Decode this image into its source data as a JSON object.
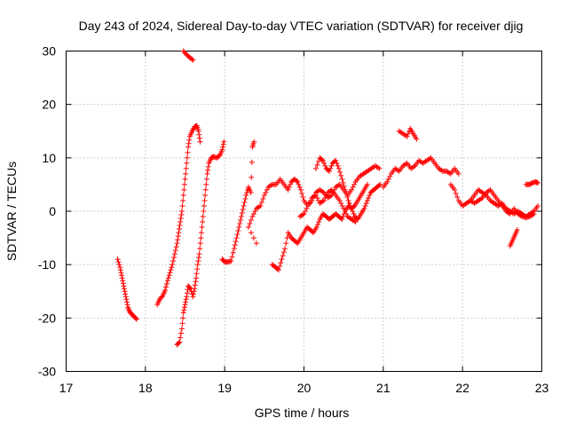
{
  "chart_data": {
    "type": "scatter",
    "title": "Day 243 of 2024, Sidereal Day-to-day VTEC variation (SDTVAR) for receiver djig",
    "xlabel": "GPS time / hours",
    "ylabel": "SDTVAR / TECUs",
    "xlim": [
      17,
      23
    ],
    "ylim": [
      -30,
      30
    ],
    "xticks": [
      17,
      18,
      19,
      20,
      21,
      22,
      23
    ],
    "yticks": [
      -30,
      -20,
      -10,
      0,
      10,
      20,
      30
    ],
    "xtick_labels": [
      "17",
      "18",
      "19",
      "20",
      "21",
      "22",
      "23"
    ],
    "ytick_labels": [
      "-30",
      "-20",
      "-10",
      "0",
      "10",
      "20",
      "30"
    ],
    "grid": true,
    "marker": "+",
    "color": "#ff0000",
    "series": [
      {
        "name": "s1",
        "points": [
          [
            17.65,
            -9
          ],
          [
            17.68,
            -10.5
          ],
          [
            17.7,
            -12
          ],
          [
            17.72,
            -13.5
          ],
          [
            17.74,
            -15
          ],
          [
            17.76,
            -16.5
          ],
          [
            17.78,
            -18
          ],
          [
            17.8,
            -18.8
          ],
          [
            17.83,
            -19.3
          ],
          [
            17.86,
            -19.8
          ],
          [
            17.89,
            -20.2
          ]
        ]
      },
      {
        "name": "s2",
        "points": [
          [
            18.15,
            -17.5
          ],
          [
            18.18,
            -16.5
          ],
          [
            18.22,
            -15.8
          ],
          [
            18.25,
            -14.8
          ],
          [
            18.28,
            -13
          ],
          [
            18.31,
            -11.5
          ],
          [
            18.34,
            -10
          ],
          [
            18.37,
            -8
          ],
          [
            18.4,
            -6
          ],
          [
            18.42,
            -4
          ],
          [
            18.44,
            -2
          ],
          [
            18.46,
            0
          ],
          [
            18.48,
            3
          ],
          [
            18.5,
            6
          ],
          [
            18.52,
            9
          ],
          [
            18.54,
            12
          ],
          [
            18.56,
            14
          ],
          [
            18.59,
            15
          ],
          [
            18.62,
            15.8
          ],
          [
            18.65,
            16
          ],
          [
            18.67,
            15
          ],
          [
            18.69,
            13
          ]
        ]
      },
      {
        "name": "s3",
        "points": [
          [
            18.48,
            30
          ],
          [
            18.52,
            29.3
          ],
          [
            18.56,
            28.8
          ],
          [
            18.6,
            28.3
          ]
        ]
      },
      {
        "name": "s4",
        "points": [
          [
            18.4,
            -25
          ],
          [
            18.43,
            -24.5
          ],
          [
            18.46,
            -22
          ],
          [
            18.48,
            -19
          ],
          [
            18.5,
            -17.5
          ],
          [
            18.52,
            -16
          ],
          [
            18.54,
            -14
          ],
          [
            18.57,
            -14.5
          ],
          [
            18.6,
            -16
          ],
          [
            18.62,
            -14.5
          ],
          [
            18.64,
            -12.5
          ],
          [
            18.66,
            -10
          ],
          [
            18.68,
            -8
          ],
          [
            18.7,
            -5
          ],
          [
            18.72,
            -2
          ],
          [
            18.74,
            1
          ],
          [
            18.76,
            4
          ],
          [
            18.78,
            7
          ],
          [
            18.8,
            9
          ],
          [
            18.83,
            10
          ],
          [
            18.86,
            10.2
          ],
          [
            18.9,
            10
          ],
          [
            18.94,
            10.5
          ],
          [
            18.97,
            11.5
          ],
          [
            18.99,
            13
          ]
        ]
      },
      {
        "name": "s5",
        "points": [
          [
            18.97,
            -9
          ],
          [
            19.0,
            -9.5
          ],
          [
            19.04,
            -9.5
          ],
          [
            19.08,
            -9.3
          ],
          [
            19.12,
            -7
          ],
          [
            19.15,
            -5
          ],
          [
            19.18,
            -3
          ],
          [
            19.21,
            -1
          ],
          [
            19.24,
            1
          ],
          [
            19.27,
            3
          ],
          [
            19.3,
            4.5
          ],
          [
            19.33,
            3.5
          ],
          [
            19.35,
            12
          ],
          [
            19.37,
            13
          ]
        ]
      },
      {
        "name": "s6",
        "points": [
          [
            19.4,
            -6
          ],
          [
            19.3,
            -3
          ],
          [
            19.35,
            -1
          ],
          [
            19.4,
            0.5
          ],
          [
            19.45,
            1
          ],
          [
            19.5,
            3
          ],
          [
            19.55,
            4.5
          ],
          [
            19.6,
            5
          ],
          [
            19.65,
            5
          ],
          [
            19.7,
            6
          ],
          [
            19.75,
            5
          ],
          [
            19.8,
            4
          ],
          [
            19.84,
            5.5
          ],
          [
            19.88,
            6
          ],
          [
            19.92,
            5.5
          ],
          [
            19.96,
            4
          ],
          [
            20.0,
            2
          ],
          [
            20.05,
            1
          ],
          [
            20.1,
            2.5
          ],
          [
            20.15,
            3
          ],
          [
            20.2,
            1.5
          ],
          [
            20.25,
            2
          ],
          [
            20.3,
            3.5
          ],
          [
            20.35,
            4
          ],
          [
            20.4,
            3
          ],
          [
            20.45,
            2
          ],
          [
            20.5,
            0.5
          ],
          [
            20.55,
            -1
          ],
          [
            20.6,
            -1.5
          ],
          [
            20.65,
            -2
          ]
        ]
      },
      {
        "name": "s7",
        "points": [
          [
            19.6,
            -10
          ],
          [
            19.64,
            -10.5
          ],
          [
            19.68,
            -11
          ],
          [
            19.72,
            -9
          ],
          [
            19.76,
            -7
          ],
          [
            19.8,
            -4
          ],
          [
            19.84,
            -5
          ],
          [
            19.88,
            -5.5
          ],
          [
            19.92,
            -6
          ],
          [
            19.96,
            -5
          ],
          [
            20.0,
            -4
          ],
          [
            20.04,
            -3
          ],
          [
            20.08,
            -3.5
          ],
          [
            20.12,
            -4
          ],
          [
            20.16,
            -3
          ],
          [
            20.2,
            -1.5
          ],
          [
            20.24,
            -0.5
          ],
          [
            20.28,
            -1
          ],
          [
            20.32,
            -1.5
          ],
          [
            20.36,
            -1
          ],
          [
            20.4,
            -0.5
          ],
          [
            20.44,
            -1
          ],
          [
            20.48,
            -1.5
          ],
          [
            20.52,
            0
          ],
          [
            20.56,
            1
          ],
          [
            20.6,
            0.5
          ],
          [
            20.64,
            1
          ],
          [
            20.68,
            2
          ],
          [
            20.72,
            3
          ],
          [
            20.76,
            4
          ],
          [
            20.8,
            5
          ]
        ]
      },
      {
        "name": "s8",
        "points": [
          [
            20.15,
            8
          ],
          [
            20.2,
            10
          ],
          [
            20.24,
            9.5
          ],
          [
            20.28,
            8
          ],
          [
            20.32,
            7.5
          ],
          [
            20.36,
            9
          ],
          [
            20.4,
            9.5
          ],
          [
            20.44,
            8
          ],
          [
            20.48,
            6
          ],
          [
            20.52,
            4
          ],
          [
            20.56,
            2
          ],
          [
            20.6,
            0.5
          ],
          [
            20.64,
            -1
          ],
          [
            20.68,
            -1.5
          ],
          [
            20.72,
            -0.5
          ],
          [
            20.76,
            0.5
          ],
          [
            20.8,
            2
          ],
          [
            20.84,
            3.5
          ],
          [
            20.88,
            4
          ],
          [
            20.92,
            4.5
          ],
          [
            20.96,
            5
          ]
        ]
      },
      {
        "name": "s9",
        "points": [
          [
            19.95,
            -1
          ],
          [
            20.0,
            -0.5
          ],
          [
            20.05,
            1
          ],
          [
            20.1,
            2
          ],
          [
            20.15,
            3.5
          ],
          [
            20.2,
            4
          ],
          [
            20.25,
            3.5
          ],
          [
            20.3,
            2.5
          ],
          [
            20.35,
            3
          ],
          [
            20.4,
            4.5
          ],
          [
            20.45,
            5
          ],
          [
            20.5,
            4
          ],
          [
            20.55,
            3
          ],
          [
            20.6,
            4
          ],
          [
            20.65,
            5.5
          ],
          [
            20.7,
            6.5
          ],
          [
            20.75,
            7
          ],
          [
            20.8,
            7.5
          ],
          [
            20.85,
            8
          ],
          [
            20.9,
            8.5
          ],
          [
            20.95,
            8
          ]
        ]
      },
      {
        "name": "s10",
        "points": [
          [
            21.0,
            4.5
          ],
          [
            21.05,
            5.5
          ],
          [
            21.1,
            7
          ],
          [
            21.15,
            8
          ],
          [
            21.2,
            7.5
          ],
          [
            21.25,
            8.5
          ],
          [
            21.3,
            9
          ],
          [
            21.35,
            8
          ],
          [
            21.4,
            8.5
          ],
          [
            21.45,
            9.5
          ],
          [
            21.5,
            9
          ],
          [
            21.55,
            9.5
          ],
          [
            21.6,
            10
          ],
          [
            21.65,
            9
          ],
          [
            21.7,
            8
          ],
          [
            21.75,
            7.5
          ],
          [
            21.8,
            7.5
          ],
          [
            21.85,
            7
          ],
          [
            21.9,
            8
          ],
          [
            21.95,
            7
          ]
        ]
      },
      {
        "name": "s11",
        "points": [
          [
            21.2,
            15
          ],
          [
            21.25,
            14.5
          ],
          [
            21.3,
            14
          ],
          [
            21.34,
            15.5
          ],
          [
            21.38,
            14.5
          ],
          [
            21.42,
            13.5
          ]
        ]
      },
      {
        "name": "s12",
        "points": [
          [
            21.85,
            5
          ],
          [
            21.9,
            4
          ],
          [
            21.95,
            2
          ],
          [
            22.0,
            1
          ],
          [
            22.05,
            1.5
          ],
          [
            22.1,
            2
          ],
          [
            22.15,
            3
          ],
          [
            22.2,
            4
          ],
          [
            22.25,
            3.5
          ],
          [
            22.3,
            3
          ],
          [
            22.35,
            2
          ],
          [
            22.4,
            1.5
          ],
          [
            22.45,
            1
          ],
          [
            22.5,
            1.5
          ],
          [
            22.55,
            0.5
          ],
          [
            22.6,
            0
          ],
          [
            22.65,
            -0.5
          ],
          [
            22.7,
            0
          ],
          [
            22.75,
            -0.5
          ],
          [
            22.8,
            -1
          ],
          [
            22.85,
            -0.5
          ],
          [
            22.9,
            0
          ],
          [
            22.95,
            1
          ]
        ]
      },
      {
        "name": "s13",
        "points": [
          [
            22.1,
            2
          ],
          [
            22.15,
            1.5
          ],
          [
            22.2,
            2
          ],
          [
            22.25,
            2.5
          ],
          [
            22.3,
            3.5
          ],
          [
            22.35,
            4
          ],
          [
            22.4,
            3
          ],
          [
            22.45,
            2
          ],
          [
            22.5,
            1
          ],
          [
            22.55,
            0
          ],
          [
            22.6,
            -0.5
          ],
          [
            22.65,
            0.5
          ],
          [
            22.7,
            -0.5
          ],
          [
            22.75,
            -1
          ],
          [
            22.8,
            -1.2
          ],
          [
            22.85,
            -1
          ],
          [
            22.9,
            -0.5
          ]
        ]
      },
      {
        "name": "s14",
        "points": [
          [
            22.6,
            -6.5
          ],
          [
            22.63,
            -5.5
          ],
          [
            22.66,
            -4.5
          ],
          [
            22.69,
            -3.5
          ]
        ]
      },
      {
        "name": "s15",
        "points": [
          [
            22.8,
            5
          ],
          [
            22.84,
            5
          ],
          [
            22.88,
            5.3
          ],
          [
            22.92,
            5.5
          ],
          [
            22.95,
            5.3
          ]
        ]
      }
    ]
  }
}
